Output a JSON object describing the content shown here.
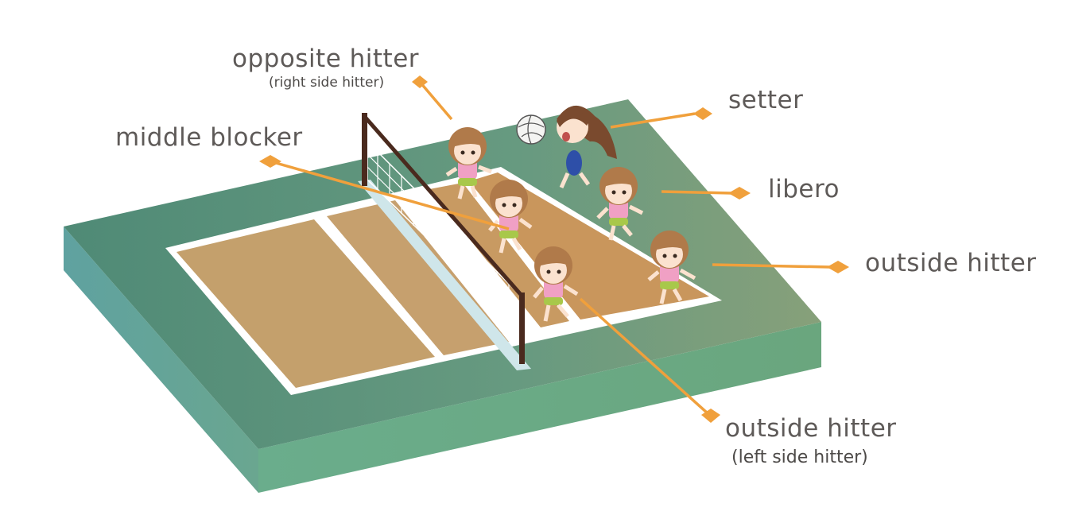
{
  "labels": {
    "opposite_hitter": "opposite hitter",
    "opposite_hitter_sub": "(right side hitter)",
    "setter": "setter",
    "middle_blocker": "middle blocker",
    "libero": "libero",
    "outside_hitter_right": "outside hitter",
    "outside_hitter_bottom": "outside hitter",
    "outside_hitter_bottom_sub": "(left side hitter)"
  },
  "colors": {
    "leader": "#f0a03c",
    "court_floor": "#c89a62",
    "court_floor_light": "#c6a06e",
    "court_base_top": "#6e9f86",
    "court_base_side": "#6fae8c",
    "net_post": "#4a2a1e",
    "player_shirt": "#f0a0c4",
    "player_hair": "#b07a4a",
    "text": "#5e5a58"
  }
}
